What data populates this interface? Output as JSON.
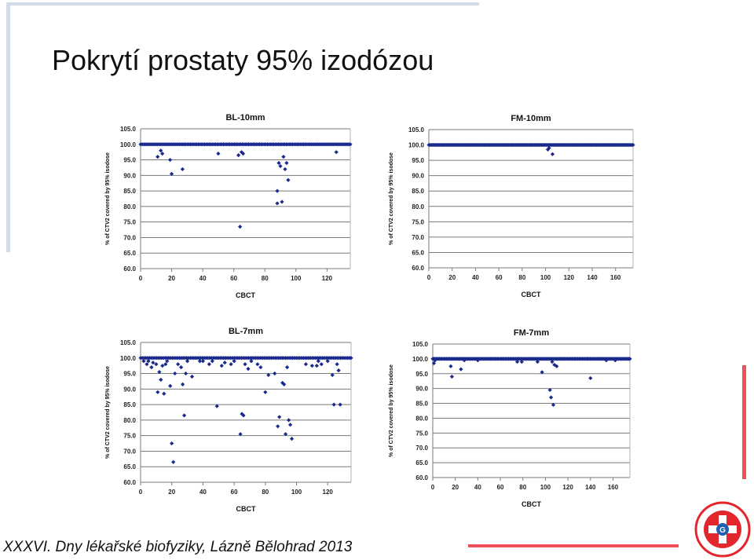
{
  "slide": {
    "title": "Pokrytí prostaty 95% izodózou",
    "footer": "XXXVI. Dny lékařské biofyziky, Lázně Bělohrad 2013",
    "logo_text": "FAKULTNÍ NEMOCNICE HRADEC KRÁLOVÉ"
  },
  "colors": {
    "marker": "#1a2a8c",
    "grid": "#7a7a7a",
    "accent": "#ee4f57",
    "deco": "#d3dbea"
  },
  "chart_data": [
    {
      "type": "scatter",
      "title": "BL-10mm",
      "xlabel": "CBCT",
      "ylabel": "% of CTV2 covered by 95% isodose",
      "xlim": [
        0,
        135
      ],
      "ylim": [
        60,
        105
      ],
      "xticks": [
        0,
        20,
        40,
        60,
        80,
        100,
        120
      ],
      "yticks": [
        60.0,
        65.0,
        70.0,
        75.0,
        80.0,
        85.0,
        90.0,
        95.0,
        100.0,
        105.0
      ],
      "grid": true,
      "points": [
        [
          11,
          96
        ],
        [
          13,
          98
        ],
        [
          14,
          97
        ],
        [
          19,
          95
        ],
        [
          20,
          90.5
        ],
        [
          27,
          92
        ],
        [
          50,
          97
        ],
        [
          63,
          96.5
        ],
        [
          64,
          73.5
        ],
        [
          65,
          97.5
        ],
        [
          66,
          97
        ],
        [
          88,
          81
        ],
        [
          88,
          85
        ],
        [
          89,
          94
        ],
        [
          90,
          93
        ],
        [
          91,
          81.5
        ],
        [
          92,
          96
        ],
        [
          93,
          92
        ],
        [
          94,
          94
        ],
        [
          95,
          88.5
        ],
        [
          126,
          97.5
        ]
      ],
      "baseline": {
        "y": 100.0,
        "x_from": 0,
        "x_to": 135,
        "count": 135
      }
    },
    {
      "type": "scatter",
      "title": "FM-10mm",
      "xlabel": "CBCT",
      "ylabel": "% of CTV2 covered by 95% isodose",
      "xlim": [
        0,
        175
      ],
      "ylim": [
        60,
        105
      ],
      "xticks": [
        0,
        20,
        40,
        60,
        80,
        100,
        120,
        140,
        160
      ],
      "yticks": [
        60.0,
        65.0,
        70.0,
        75.0,
        80.0,
        85.0,
        90.0,
        95.0,
        100.0,
        105.0
      ],
      "grid": true,
      "points": [
        [
          102,
          98.5
        ],
        [
          103,
          99
        ],
        [
          106,
          97
        ]
      ],
      "baseline": {
        "y": 100.0,
        "x_from": 0,
        "x_to": 175,
        "count": 175
      }
    },
    {
      "type": "scatter",
      "title": "BL-7mm",
      "xlabel": "CBCT",
      "ylabel": "% of CTV2 covered by 95% isodose",
      "xlim": [
        0,
        135
      ],
      "ylim": [
        60,
        105
      ],
      "xticks": [
        0,
        20,
        40,
        60,
        80,
        100,
        120
      ],
      "yticks": [
        60.0,
        65.0,
        70.0,
        75.0,
        80.0,
        85.0,
        90.0,
        95.0,
        100.0,
        105.0
      ],
      "grid": true,
      "points": [
        [
          2,
          99
        ],
        [
          4,
          98
        ],
        [
          5,
          99
        ],
        [
          7,
          97
        ],
        [
          8,
          98.5
        ],
        [
          10,
          98
        ],
        [
          11,
          89
        ],
        [
          12,
          95.5
        ],
        [
          13,
          93
        ],
        [
          14,
          97.5
        ],
        [
          15,
          88.5
        ],
        [
          16,
          98
        ],
        [
          17,
          99
        ],
        [
          19,
          91
        ],
        [
          20,
          72.5
        ],
        [
          21,
          66.5
        ],
        [
          22,
          95
        ],
        [
          24,
          98
        ],
        [
          26,
          97
        ],
        [
          27,
          91.5
        ],
        [
          28,
          81.5
        ],
        [
          29,
          95
        ],
        [
          30,
          99
        ],
        [
          33,
          94
        ],
        [
          38,
          99
        ],
        [
          40,
          99
        ],
        [
          44,
          98
        ],
        [
          46,
          99
        ],
        [
          49,
          84.5
        ],
        [
          52,
          97.5
        ],
        [
          54,
          98.5
        ],
        [
          58,
          98
        ],
        [
          60,
          99
        ],
        [
          64,
          75.5
        ],
        [
          65,
          82
        ],
        [
          66,
          81.5
        ],
        [
          67,
          98
        ],
        [
          69,
          96.5
        ],
        [
          71,
          99
        ],
        [
          75,
          98
        ],
        [
          77,
          97
        ],
        [
          80,
          89
        ],
        [
          82,
          94.5
        ],
        [
          86,
          95
        ],
        [
          88,
          78
        ],
        [
          89,
          81
        ],
        [
          91,
          92
        ],
        [
          92,
          91.5
        ],
        [
          93,
          75.5
        ],
        [
          94,
          97
        ],
        [
          95,
          80
        ],
        [
          96,
          78.5
        ],
        [
          97,
          74
        ],
        [
          106,
          98
        ],
        [
          110,
          97.5
        ],
        [
          113,
          97.5
        ],
        [
          114,
          99
        ],
        [
          116,
          98
        ],
        [
          120,
          99
        ],
        [
          123,
          94.5
        ],
        [
          124,
          85
        ],
        [
          126,
          98
        ],
        [
          127,
          96
        ],
        [
          128,
          85
        ]
      ],
      "baseline": {
        "y": 100.0,
        "x_from": 0,
        "x_to": 135,
        "count": 120
      }
    },
    {
      "type": "scatter",
      "title": "FM-7mm",
      "xlabel": "CBCT",
      "ylabel": "% of CTV2 covered by 95% isodose",
      "xlim": [
        0,
        175
      ],
      "ylim": [
        60,
        105
      ],
      "xticks": [
        0,
        20,
        40,
        60,
        80,
        100,
        120,
        140,
        160
      ],
      "yticks": [
        60.0,
        65.0,
        70.0,
        75.0,
        80.0,
        85.0,
        90.0,
        95.0,
        100.0,
        105.0
      ],
      "grid": true,
      "points": [
        [
          1,
          98.5
        ],
        [
          2,
          99.5
        ],
        [
          16,
          97.5
        ],
        [
          17,
          94
        ],
        [
          25,
          96.5
        ],
        [
          28,
          99.5
        ],
        [
          40,
          99.5
        ],
        [
          75,
          99
        ],
        [
          79,
          99
        ],
        [
          93,
          99
        ],
        [
          97,
          95.5
        ],
        [
          104,
          89.5
        ],
        [
          105,
          87
        ],
        [
          106,
          99
        ],
        [
          107,
          84.5
        ],
        [
          108,
          98
        ],
        [
          110,
          97.5
        ],
        [
          140,
          93.5
        ],
        [
          154,
          99.5
        ],
        [
          162,
          99.5
        ]
      ],
      "baseline": {
        "y": 100.0,
        "x_from": 0,
        "x_to": 175,
        "count": 175
      }
    }
  ]
}
